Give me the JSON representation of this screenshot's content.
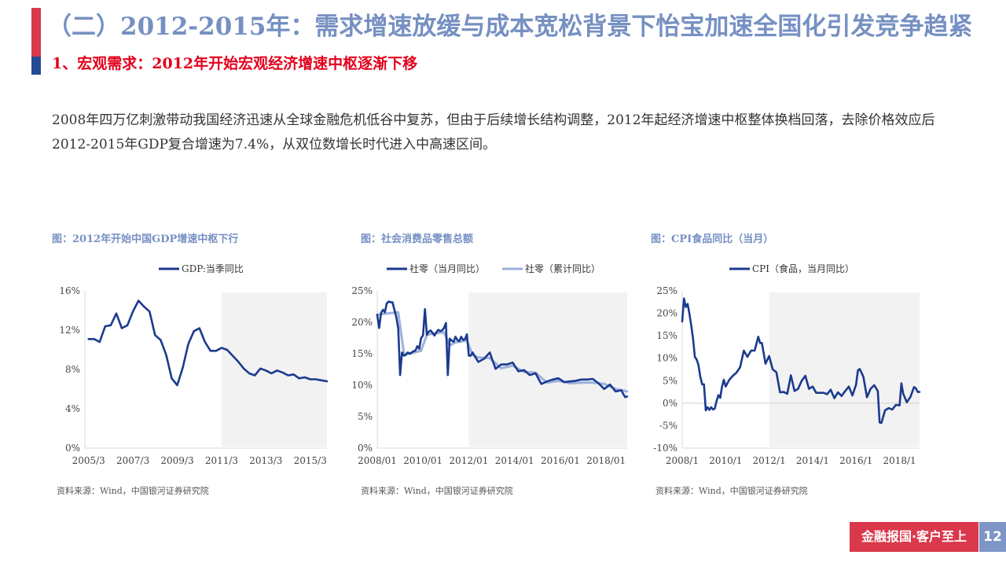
{
  "slide": {
    "main_title": "（二）2012-2015年：需求增速放缓与成本宽松背景下怡宝加速全国化引发竞争趋紧",
    "sub_title": "1、宏观需求：2012年开始宏观经济增速中枢逐渐下移",
    "body": "2008年四万亿刺激带动我国经济迅速从全球金融危机低谷中复苏，但由于后续增长结构调整，2012年起经济增速中枢整体换档回落，去除价格效应后2012-2015年GDP复合增速为7.4%，从双位数增长时代进入中高速区间。",
    "footer_tag": "金融报国·客户至上",
    "page_number": "12",
    "colors": {
      "title_blue": "#7690c2",
      "sub_red": "#e3001b",
      "series_dark": "#1b3a8f",
      "series_light": "#9cb1db",
      "shade": "#f2f2f2"
    }
  },
  "chart_data": [
    {
      "type": "line",
      "title": "图：2012年开始中国GDP增速中枢下行",
      "source": "资料来源：Wind，中国银河证券研究院",
      "x_ticks": [
        "2005/3",
        "2007/3",
        "2009/3",
        "2011/3",
        "2013/3",
        "2015/3"
      ],
      "y_ticks": [
        "0%",
        "4%",
        "8%",
        "12%",
        "16%"
      ],
      "ylim": [
        0,
        16
      ],
      "shaded_from": "2011/3",
      "series": [
        {
          "name": "GDP:当季同比",
          "x": [
            "2005/3",
            "2005/6",
            "2005/9",
            "2005/12",
            "2006/3",
            "2006/6",
            "2006/9",
            "2006/12",
            "2007/3",
            "2007/6",
            "2007/9",
            "2007/12",
            "2008/3",
            "2008/6",
            "2008/9",
            "2008/12",
            "2009/3",
            "2009/6",
            "2009/9",
            "2009/12",
            "2010/3",
            "2010/6",
            "2010/9",
            "2010/12",
            "2011/3",
            "2011/6",
            "2011/9",
            "2011/12",
            "2012/3",
            "2012/6",
            "2012/9",
            "2012/12",
            "2013/3",
            "2013/6",
            "2013/9",
            "2013/12",
            "2014/3",
            "2014/6",
            "2014/9",
            "2014/12",
            "2015/3",
            "2015/6",
            "2015/9",
            "2015/12"
          ],
          "values": [
            11.1,
            11.1,
            10.8,
            12.4,
            12.5,
            13.7,
            12.2,
            12.5,
            13.9,
            15.0,
            14.4,
            13.9,
            11.5,
            11.0,
            9.5,
            7.1,
            6.4,
            8.2,
            10.6,
            11.9,
            12.2,
            10.8,
            9.9,
            9.9,
            10.2,
            10.0,
            9.4,
            8.8,
            8.1,
            7.6,
            7.4,
            8.1,
            7.9,
            7.6,
            7.9,
            7.7,
            7.4,
            7.5,
            7.1,
            7.2,
            7.0,
            7.0,
            6.9,
            6.8
          ]
        }
      ]
    },
    {
      "type": "line",
      "title": "图：社会消费品零售总额",
      "source": "资料来源：Wind，中国银河证券研究院",
      "x_ticks": [
        "2008/01",
        "2010/01",
        "2012/01",
        "2014/01",
        "2016/01",
        "2018/01"
      ],
      "y_ticks": [
        "0%",
        "5%",
        "10%",
        "15%",
        "20%",
        "25%"
      ],
      "ylim": [
        0,
        25
      ],
      "shaded_from": "2012/01",
      "series": [
        {
          "name": "社零（当月同比）",
          "x": [
            "2008/01",
            "2008/02",
            "2008/03",
            "2008/04",
            "2008/05",
            "2008/06",
            "2008/07",
            "2008/08",
            "2008/09",
            "2008/10",
            "2008/11",
            "2008/12",
            "2009/01",
            "2009/02",
            "2009/03",
            "2009/04",
            "2009/05",
            "2009/06",
            "2009/07",
            "2009/08",
            "2009/09",
            "2009/10",
            "2009/11",
            "2009/12",
            "2010/01",
            "2010/02",
            "2010/03",
            "2010/04",
            "2010/05",
            "2010/06",
            "2010/07",
            "2010/08",
            "2010/09",
            "2010/10",
            "2010/11",
            "2010/12",
            "2011/01",
            "2011/02",
            "2011/03",
            "2011/04",
            "2011/05",
            "2011/06",
            "2011/07",
            "2011/08",
            "2011/09",
            "2011/10",
            "2011/11",
            "2011/12",
            "2012/01",
            "2012/02",
            "2012/03",
            "2012/06",
            "2012/09",
            "2012/12",
            "2013/03",
            "2013/06",
            "2013/09",
            "2013/12",
            "2014/03",
            "2014/06",
            "2014/09",
            "2014/12",
            "2015/03",
            "2015/06",
            "2015/09",
            "2015/12",
            "2016/03",
            "2016/06",
            "2016/09",
            "2016/12",
            "2017/03",
            "2017/06",
            "2017/09",
            "2017/12",
            "2018/03",
            "2018/06",
            "2018/09",
            "2018/10",
            "2018/11",
            "2018/12"
          ],
          "values": [
            21.2,
            19.1,
            21.5,
            22.0,
            21.6,
            23.0,
            23.3,
            23.2,
            23.2,
            22.0,
            20.8,
            19.0,
            11.6,
            15.2,
            14.7,
            14.8,
            15.2,
            15.0,
            15.2,
            15.4,
            15.5,
            16.2,
            15.8,
            17.5,
            17.9,
            22.1,
            18.0,
            18.5,
            18.7,
            18.3,
            17.9,
            18.4,
            18.8,
            18.6,
            18.7,
            19.1,
            19.9,
            11.6,
            17.4,
            17.1,
            16.9,
            17.7,
            17.2,
            17.0,
            17.7,
            17.2,
            17.3,
            18.1,
            14.7,
            14.7,
            15.2,
            13.7,
            14.2,
            15.2,
            12.6,
            13.3,
            13.3,
            13.6,
            12.2,
            12.4,
            11.6,
            11.9,
            10.2,
            10.6,
            10.9,
            11.1,
            10.5,
            10.6,
            10.7,
            10.9,
            10.9,
            11.0,
            10.3,
            9.4,
            10.1,
            9.0,
            9.2,
            8.6,
            8.1,
            8.2
          ]
        },
        {
          "name": "社零（累计同比）",
          "x": [
            "2008/01",
            "2008/06",
            "2008/12",
            "2009/03",
            "2009/06",
            "2009/12",
            "2010/03",
            "2010/06",
            "2010/12",
            "2011/03",
            "2011/06",
            "2011/12",
            "2012/03",
            "2012/06",
            "2012/12",
            "2013/06",
            "2013/12",
            "2014/06",
            "2014/12",
            "2015/06",
            "2015/12",
            "2016/06",
            "2016/12",
            "2017/06",
            "2017/12",
            "2018/06",
            "2018/12"
          ],
          "values": [
            21.2,
            21.4,
            21.6,
            15.0,
            15.0,
            15.5,
            18.0,
            18.2,
            18.4,
            16.3,
            16.8,
            17.1,
            14.8,
            14.4,
            14.3,
            12.7,
            13.1,
            12.1,
            12.0,
            10.4,
            10.7,
            10.3,
            10.4,
            10.4,
            10.2,
            9.4,
            9.0
          ]
        }
      ]
    },
    {
      "type": "line",
      "title": "图：CPI食品同比（当月）",
      "source": "资料来源：Wind，中国银河证券研究院",
      "x_ticks": [
        "2008/1",
        "2010/1",
        "2012/1",
        "2014/1",
        "2016/1",
        "2018/1"
      ],
      "y_ticks": [
        "-10%",
        "-5%",
        "0%",
        "5%",
        "10%",
        "15%",
        "20%",
        "25%"
      ],
      "ylim": [
        -10,
        25
      ],
      "shaded_from": "2012/1",
      "series": [
        {
          "name": "CPI（食品，当月同比）",
          "x": [
            "2008/1",
            "2008/2",
            "2008/3",
            "2008/4",
            "2008/5",
            "2008/6",
            "2008/7",
            "2008/8",
            "2008/9",
            "2008/10",
            "2008/11",
            "2008/12",
            "2009/1",
            "2009/2",
            "2009/3",
            "2009/4",
            "2009/5",
            "2009/6",
            "2009/7",
            "2009/8",
            "2009/9",
            "2009/10",
            "2009/11",
            "2009/12",
            "2010/1",
            "2010/3",
            "2010/5",
            "2010/7",
            "2010/9",
            "2010/11",
            "2011/1",
            "2011/3",
            "2011/5",
            "2011/7",
            "2011/8",
            "2011/9",
            "2011/11",
            "2012/1",
            "2012/3",
            "2012/5",
            "2012/7",
            "2012/9",
            "2012/11",
            "2013/1",
            "2013/3",
            "2013/5",
            "2013/7",
            "2013/9",
            "2013/11",
            "2014/1",
            "2014/3",
            "2014/5",
            "2014/7",
            "2014/9",
            "2014/11",
            "2015/1",
            "2015/3",
            "2015/5",
            "2015/7",
            "2015/9",
            "2015/11",
            "2016/1",
            "2016/2",
            "2016/3",
            "2016/5",
            "2016/7",
            "2016/9",
            "2016/11",
            "2017/1",
            "2017/2",
            "2017/3",
            "2017/5",
            "2017/7",
            "2017/9",
            "2017/11",
            "2018/1",
            "2018/2",
            "2018/3",
            "2018/5",
            "2018/7",
            "2018/9",
            "2018/10",
            "2018/11",
            "2018/12"
          ],
          "values": [
            18.2,
            23.3,
            21.4,
            22.1,
            19.9,
            17.3,
            14.4,
            10.3,
            9.7,
            8.5,
            5.9,
            4.2,
            4.2,
            -1.6,
            -0.9,
            -1.5,
            -0.9,
            -1.4,
            -1.2,
            0.5,
            1.8,
            1.2,
            3.7,
            5.2,
            3.7,
            5.2,
            6.1,
            6.8,
            8.0,
            11.7,
            10.3,
            11.7,
            11.7,
            14.8,
            13.4,
            13.4,
            8.8,
            10.5,
            7.5,
            6.9,
            2.4,
            2.5,
            2.1,
            6.2,
            2.7,
            3.2,
            5.0,
            6.1,
            3.2,
            3.7,
            2.3,
            2.3,
            2.3,
            2.0,
            3.0,
            1.1,
            2.4,
            1.6,
            2.7,
            3.7,
            1.7,
            4.1,
            7.3,
            7.6,
            5.9,
            1.3,
            3.2,
            4.0,
            2.7,
            -4.3,
            -4.4,
            -1.6,
            -1.1,
            -1.4,
            -0.4,
            -0.5,
            4.4,
            2.1,
            0.2,
            1.4,
            3.6,
            3.3,
            2.5,
            2.5
          ]
        }
      ]
    }
  ]
}
